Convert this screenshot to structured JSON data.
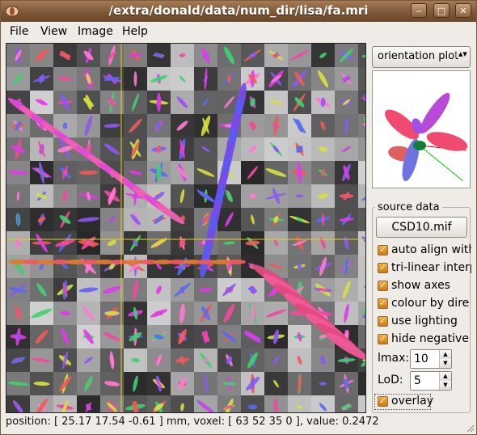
{
  "window": {
    "title": "/extra/donald/data/num_dir/lisa/fa.mri",
    "minimize_glyph": "‒",
    "maximize_glyph": "□",
    "close_glyph": "✕"
  },
  "menu": {
    "file": "File",
    "view": "View",
    "image": "Image",
    "help": "Help"
  },
  "sidebar": {
    "mode_select": {
      "value": "orientation plot",
      "arrow": "▲▼"
    },
    "source_group_title": "source data",
    "source_button": "CSD10.mif",
    "checkboxes": [
      {
        "label": "auto align with",
        "checked": true
      },
      {
        "label": "tri-linear interp",
        "checked": true
      },
      {
        "label": "show axes",
        "checked": true
      },
      {
        "label": "colour by dire",
        "checked": true
      },
      {
        "label": "use lighting",
        "checked": true
      },
      {
        "label": "hide negative",
        "checked": true
      },
      {
        "label": "overlay",
        "checked": true
      }
    ],
    "lmax": {
      "label": "lmax:",
      "value": "10"
    },
    "lod": {
      "label": "LoD:",
      "value": "5"
    }
  },
  "status": {
    "text": "position: [ 25.17 17.54 -0.61 ] mm, voxel: [ 63 52 35 0 ], value: 0.2472"
  },
  "colors": {
    "titlebar": "#7b5535",
    "checkbox": "#e08a18",
    "crosshair": "#e8d010"
  }
}
